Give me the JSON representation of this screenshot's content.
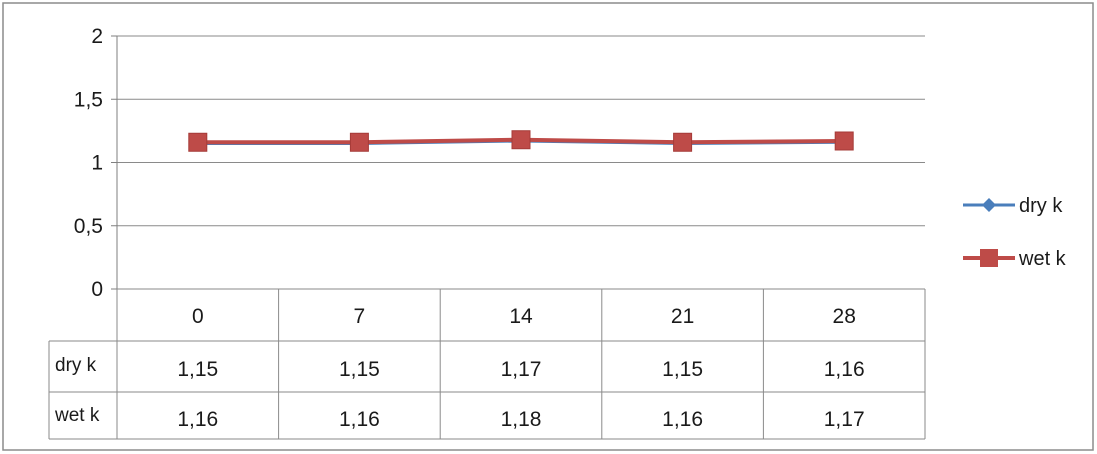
{
  "chart_data": {
    "type": "line",
    "categories": [
      "0",
      "7",
      "14",
      "21",
      "28"
    ],
    "series": [
      {
        "name": "dry k",
        "values": [
          1.15,
          1.15,
          1.17,
          1.15,
          1.16
        ],
        "labels": [
          "1,15",
          "1,15",
          "1,17",
          "1,15",
          "1,16"
        ],
        "color": "#4a7ebb",
        "marker": "diamond"
      },
      {
        "name": "wet k",
        "values": [
          1.16,
          1.16,
          1.18,
          1.16,
          1.17
        ],
        "labels": [
          "1,16",
          "1,16",
          "1,18",
          "1,16",
          "1,17"
        ],
        "color": "#be4b48",
        "marker": "square"
      }
    ],
    "yticks": [
      "0",
      "0,5",
      "1",
      "1,5",
      "2"
    ],
    "ylim": [
      0,
      2
    ],
    "grid": true,
    "legend": "right",
    "data_table": true
  }
}
